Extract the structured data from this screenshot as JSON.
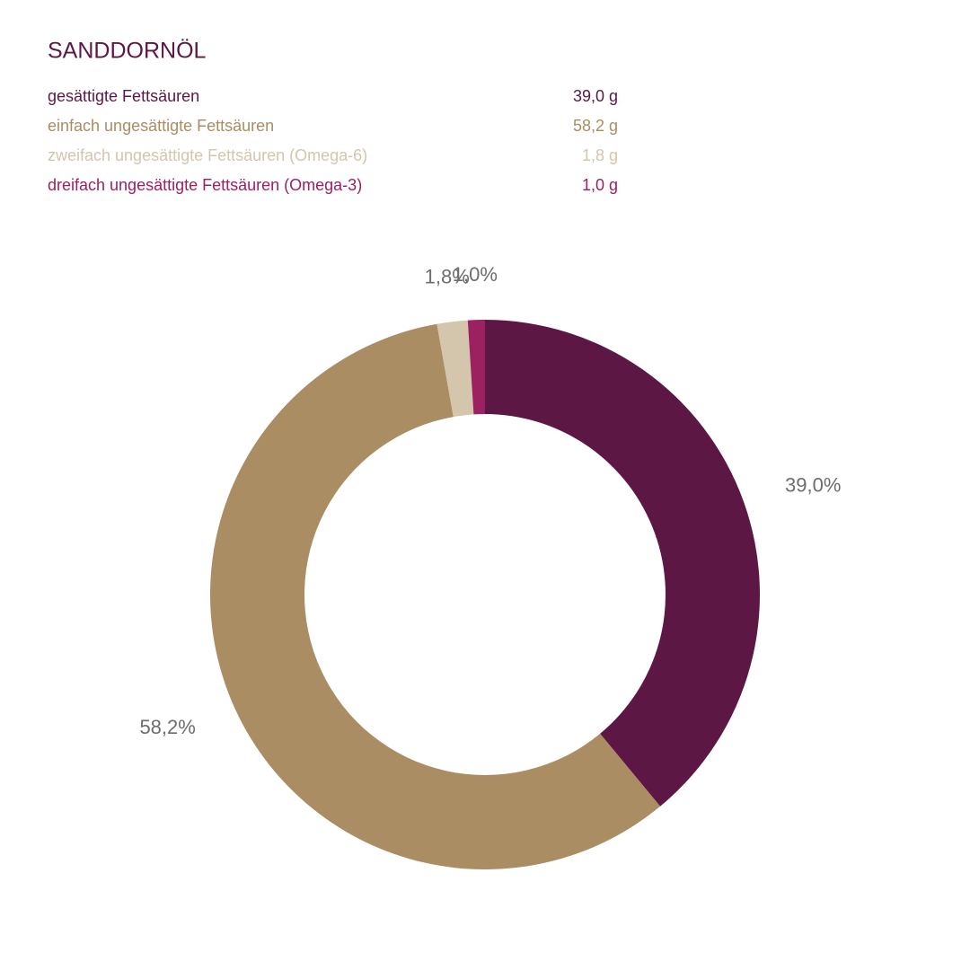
{
  "chart_data": {
    "type": "donut",
    "title": "SANDDORNÖL",
    "categories": [
      "gesättigte Fettsäuren",
      "einfach ungesättigte Fettsäuren",
      "zweifach ungesättigte Fettsäuren (Omega-6)",
      "dreifach ungesättigte Fettsäuren (Omega-3)"
    ],
    "values": [
      39.0,
      58.2,
      1.8,
      1.0
    ],
    "value_labels": [
      "39,0%",
      "58,2%",
      "1,8%",
      "1,0%"
    ],
    "legend_value_labels": [
      "39,0 g",
      "58,2 g",
      "1,8 g",
      "1,0 g"
    ],
    "colors": [
      "#5c1745",
      "#aa8d62",
      "#d3c6ad",
      "#9b2160"
    ]
  }
}
